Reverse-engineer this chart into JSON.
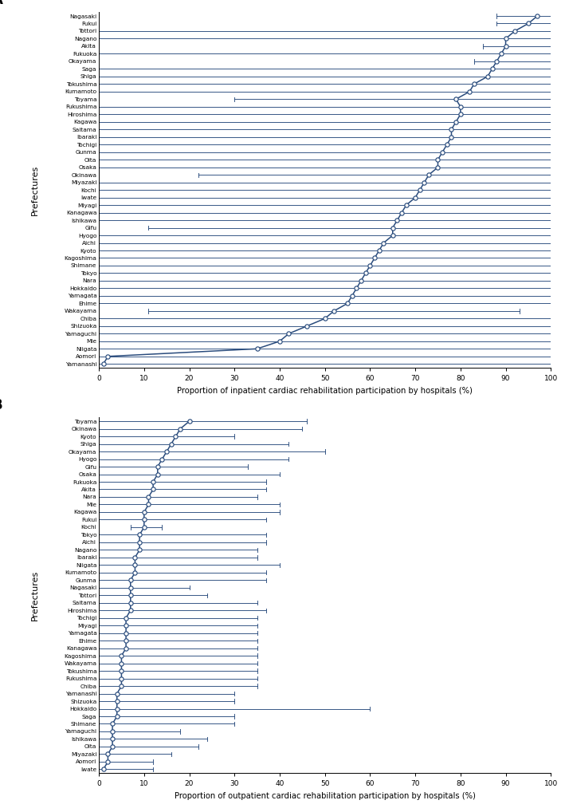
{
  "color": "#2a4c7d",
  "panel_A": {
    "prefectures": [
      "Nagasaki",
      "Fukui",
      "Tottori",
      "Nagano",
      "Akita",
      "Fukuoka",
      "Okayama",
      "Saga",
      "Shiga",
      "Tokushima",
      "Kumamoto",
      "Toyama",
      "Fukushima",
      "Hiroshima",
      "Kagawa",
      "Saitama",
      "Ibaraki",
      "Tochigi",
      "Gunma",
      "Oita",
      "Osaka",
      "Okinawa",
      "Miyazaki",
      "Kochi",
      "Iwate",
      "Miyagi",
      "Kanagawa",
      "Ishikawa",
      "Gifu",
      "Hyogo",
      "Aichi",
      "Kyoto",
      "Kagoshima",
      "Shimane",
      "Tokyo",
      "Nara",
      "Hokkaido",
      "Yamagata",
      "Ehime",
      "Wakayama",
      "Chiba",
      "Shizuoka",
      "Yamaguchi",
      "Mie",
      "Niigata",
      "Aomori",
      "Yamanashi"
    ],
    "median": [
      97,
      95,
      92,
      90,
      90,
      89,
      88,
      87,
      86,
      83,
      82,
      79,
      80,
      80,
      79,
      78,
      78,
      77,
      76,
      75,
      75,
      73,
      72,
      71,
      70,
      68,
      67,
      66,
      65,
      65,
      63,
      62,
      61,
      60,
      59,
      58,
      57,
      56,
      55,
      52,
      50,
      46,
      42,
      40,
      35,
      2,
      1
    ],
    "ci_low": [
      88,
      88,
      0,
      0,
      85,
      0,
      83,
      0,
      0,
      0,
      0,
      30,
      0,
      0,
      0,
      0,
      0,
      0,
      0,
      0,
      0,
      22,
      0,
      0,
      0,
      0,
      0,
      0,
      11,
      0,
      0,
      0,
      0,
      0,
      0,
      0,
      0,
      0,
      0,
      11,
      0,
      0,
      0,
      0,
      0,
      0,
      0
    ],
    "ci_high": [
      100,
      100,
      100,
      100,
      100,
      100,
      100,
      100,
      100,
      100,
      100,
      100,
      100,
      100,
      100,
      100,
      100,
      100,
      100,
      100,
      100,
      100,
      100,
      100,
      100,
      100,
      100,
      100,
      100,
      100,
      100,
      100,
      100,
      100,
      100,
      100,
      100,
      100,
      100,
      93,
      100,
      100,
      100,
      100,
      100,
      100,
      100
    ]
  },
  "panel_B": {
    "prefectures": [
      "Toyama",
      "Okinawa",
      "Kyoto",
      "Shiga",
      "Okayama",
      "Hyogo",
      "Gifu",
      "Osaka",
      "Fukuoka",
      "Akita",
      "Nara",
      "Mie",
      "Kagawa",
      "Fukui",
      "Kochi",
      "Tokyo",
      "Aichi",
      "Nagano",
      "Ibaraki",
      "Niigata",
      "Kumamoto",
      "Gunma",
      "Nagasaki",
      "Tottori",
      "Saitama",
      "Hiroshima",
      "Tochigi",
      "Miyagi",
      "Yamagata",
      "Ehime",
      "Kanagawa",
      "Kagoshima",
      "Wakayama",
      "Tokushima",
      "Fukushima",
      "Chiba",
      "Yamanashi",
      "Shizuoka",
      "Hokkaido",
      "Saga",
      "Shimane",
      "Yamaguchi",
      "Ishikawa",
      "Oita",
      "Miyazaki",
      "Aomori",
      "Iwate"
    ],
    "median": [
      20,
      18,
      17,
      16,
      15,
      14,
      13,
      13,
      12,
      12,
      11,
      11,
      10,
      10,
      10,
      9,
      9,
      9,
      8,
      8,
      8,
      7,
      7,
      7,
      7,
      7,
      6,
      6,
      6,
      6,
      6,
      5,
      5,
      5,
      5,
      5,
      4,
      4,
      4,
      4,
      3,
      3,
      3,
      3,
      2,
      2,
      1
    ],
    "ci_low": [
      0,
      0,
      0,
      0,
      0,
      0,
      0,
      0,
      0,
      0,
      0,
      0,
      0,
      0,
      7,
      0,
      0,
      0,
      0,
      0,
      0,
      0,
      0,
      0,
      0,
      0,
      0,
      0,
      0,
      0,
      0,
      0,
      0,
      0,
      0,
      0,
      0,
      0,
      0,
      0,
      0,
      0,
      0,
      0,
      0,
      0,
      0
    ],
    "ci_high": [
      46,
      45,
      30,
      42,
      50,
      42,
      33,
      40,
      37,
      37,
      35,
      40,
      40,
      37,
      14,
      37,
      37,
      35,
      35,
      40,
      37,
      37,
      20,
      24,
      35,
      37,
      35,
      35,
      35,
      35,
      35,
      35,
      35,
      35,
      35,
      35,
      30,
      30,
      60,
      30,
      30,
      18,
      24,
      22,
      16,
      12,
      12
    ]
  },
  "xlabel_A": "Proportion of inpatient cardiac rehabilitation participation by hospitals (%)",
  "xlabel_B": "Proportion of outpatient cardiac rehabilitation participation by hospitals (%)",
  "ylabel": "Prefectures",
  "xlim_A": 100,
  "xlim_B": 100,
  "xticks_A": [
    0,
    10,
    20,
    30,
    40,
    50,
    60,
    70,
    80,
    90,
    100
  ],
  "xticks_B": [
    0,
    10,
    20,
    30,
    40,
    50,
    60,
    70,
    80,
    90,
    100
  ]
}
